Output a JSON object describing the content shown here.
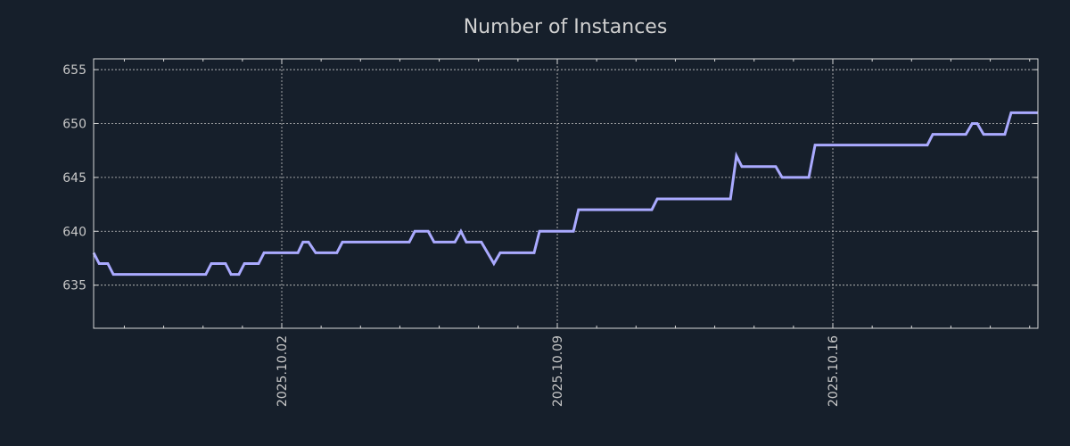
{
  "chart_data": {
    "type": "line",
    "title": "Number of Instances",
    "xlabel": "",
    "ylabel": "",
    "x_units": "days relative to 2025.10.02",
    "xlim": [
      -4.78,
      19.21
    ],
    "ylim": [
      631,
      656
    ],
    "grid": true,
    "colors": {
      "background": "#161f2b",
      "line": "#aaaaff",
      "axis": "#d8d8d8",
      "grid": "#c8c8c8",
      "text": "#c8c8c8"
    },
    "y_ticks": [
      635,
      640,
      645,
      650,
      655
    ],
    "x_ticks": [
      {
        "value": 0,
        "label": "2025.10.02"
      },
      {
        "value": 7,
        "label": "2025.10.09"
      },
      {
        "value": 14,
        "label": "2025.10.16"
      }
    ],
    "x_minor_ticks": [
      -4,
      -3,
      -2,
      -1,
      0,
      1,
      2,
      3,
      4,
      5,
      6,
      7,
      8,
      9,
      10,
      11,
      12,
      13,
      14,
      15,
      16,
      17,
      18,
      19
    ],
    "series": [
      {
        "name": "instances",
        "points": [
          [
            -4.78,
            638
          ],
          [
            -4.64,
            637
          ],
          [
            -4.42,
            637
          ],
          [
            -4.28,
            636
          ],
          [
            -1.93,
            636
          ],
          [
            -1.79,
            637
          ],
          [
            -1.43,
            637
          ],
          [
            -1.29,
            636
          ],
          [
            -1.09,
            636
          ],
          [
            -0.95,
            637
          ],
          [
            -0.59,
            637
          ],
          [
            -0.45,
            638
          ],
          [
            0.41,
            638
          ],
          [
            0.54,
            639
          ],
          [
            0.68,
            639
          ],
          [
            0.86,
            638
          ],
          [
            1.4,
            638
          ],
          [
            1.54,
            639
          ],
          [
            3.24,
            639
          ],
          [
            3.38,
            640
          ],
          [
            3.72,
            640
          ],
          [
            3.87,
            639
          ],
          [
            4.4,
            639
          ],
          [
            4.55,
            640
          ],
          [
            4.69,
            639
          ],
          [
            5.07,
            639
          ],
          [
            5.39,
            637
          ],
          [
            5.55,
            638
          ],
          [
            6.41,
            638
          ],
          [
            6.55,
            640
          ],
          [
            7.41,
            640
          ],
          [
            7.54,
            642
          ],
          [
            9.4,
            642
          ],
          [
            9.54,
            643
          ],
          [
            11.4,
            643
          ],
          [
            11.55,
            647
          ],
          [
            11.69,
            646
          ],
          [
            12.55,
            646
          ],
          [
            12.71,
            645
          ],
          [
            13.39,
            645
          ],
          [
            13.55,
            648
          ],
          [
            16.4,
            648
          ],
          [
            16.54,
            649
          ],
          [
            17.38,
            649
          ],
          [
            17.54,
            650
          ],
          [
            17.67,
            650
          ],
          [
            17.83,
            649
          ],
          [
            18.37,
            649
          ],
          [
            18.53,
            651
          ],
          [
            19.21,
            651
          ]
        ]
      }
    ]
  }
}
